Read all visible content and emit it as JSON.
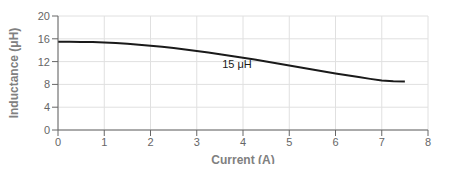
{
  "chart_data": {
    "type": "line",
    "xlabel": "Current (A)",
    "ylabel": "Inductance (μH)",
    "x": [
      0,
      0.25,
      0.5,
      0.75,
      1.0,
      1.25,
      1.5,
      1.75,
      2.0,
      2.25,
      2.5,
      2.75,
      3.0,
      3.25,
      3.5,
      3.75,
      4.0,
      4.25,
      4.5,
      4.75,
      5.0,
      5.25,
      5.5,
      5.75,
      6.0,
      6.25,
      6.5,
      6.75,
      7.0,
      7.25,
      7.5
    ],
    "series": [
      {
        "color": "#1a1a1a",
        "values": [
          15.5,
          15.48,
          15.45,
          15.42,
          15.35,
          15.25,
          15.12,
          14.97,
          14.8,
          14.6,
          14.38,
          14.14,
          13.88,
          13.6,
          13.3,
          13.0,
          12.68,
          12.35,
          12.02,
          11.68,
          11.33,
          10.98,
          10.63,
          10.28,
          9.93,
          9.6,
          9.28,
          8.97,
          8.7,
          8.55,
          8.5
        ]
      }
    ],
    "xlim": [
      0,
      8
    ],
    "ylim": [
      0,
      20
    ],
    "xticks": [
      0,
      1,
      2,
      3,
      4,
      5,
      6,
      7,
      8
    ],
    "yticks": [
      0,
      4,
      8,
      12,
      16,
      20
    ],
    "grid": true,
    "annotations": [
      {
        "text": "15 μH",
        "x": 3.55,
        "y": 11.6,
        "color": "#1a1a1a"
      }
    ]
  }
}
